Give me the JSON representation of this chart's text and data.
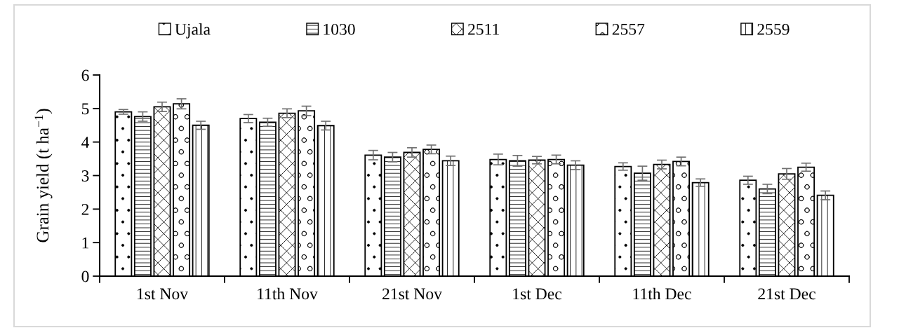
{
  "chart_data": {
    "type": "bar",
    "ylabel": "Grain yield (t ha$^{−1}$)",
    "categories": [
      "1st Nov",
      "11th Nov",
      "21st Nov",
      "1st Dec",
      "11th Dec",
      "21st Dec"
    ],
    "series": [
      {
        "name": "Ujala",
        "values": [
          4.9,
          4.7,
          3.61,
          3.48,
          3.27,
          2.86
        ],
        "errors": [
          0.07,
          0.12,
          0.14,
          0.16,
          0.11,
          0.12
        ]
      },
      {
        "name": "1030",
        "values": [
          4.76,
          4.59,
          3.55,
          3.44,
          3.07,
          2.6
        ],
        "errors": [
          0.14,
          0.12,
          0.14,
          0.16,
          0.21,
          0.14
        ]
      },
      {
        "name": "2511",
        "values": [
          5.05,
          4.86,
          3.69,
          3.46,
          3.33,
          3.05
        ],
        "errors": [
          0.14,
          0.13,
          0.14,
          0.11,
          0.13,
          0.16
        ]
      },
      {
        "name": "2557",
        "values": [
          5.14,
          4.93,
          3.78,
          3.48,
          3.42,
          3.25
        ],
        "errors": [
          0.15,
          0.14,
          0.13,
          0.13,
          0.13,
          0.12
        ]
      },
      {
        "name": "2559",
        "values": [
          4.5,
          4.49,
          3.44,
          3.31,
          2.79,
          2.41
        ],
        "errors": [
          0.12,
          0.13,
          0.14,
          0.13,
          0.11,
          0.13
        ]
      }
    ],
    "ylim": [
      0,
      6
    ],
    "yticks": [
      0,
      1,
      2,
      3,
      4,
      5,
      6
    ],
    "grid": false,
    "legend": "top"
  }
}
